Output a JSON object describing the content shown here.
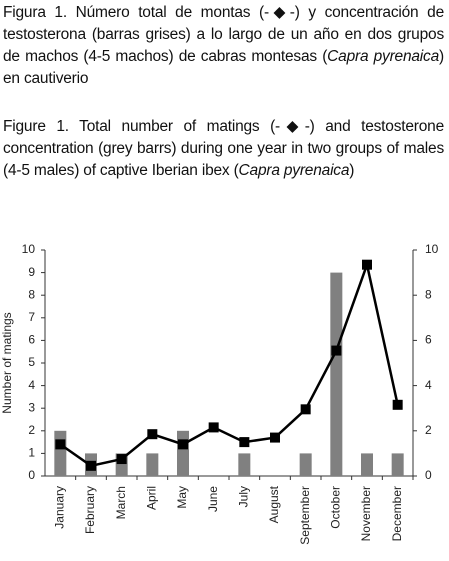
{
  "captions": {
    "spanish": [
      "Figura 1. Número total de montas (-◆-) y concentración de testosterona (barras grises) a lo largo de un año en dos grupos de machos (4-5 machos) de cabras montesas (",
      "Capra pyrenaica",
      ") en cautiverio"
    ],
    "english": [
      "Figure 1. Total number of matings (-◆-) and testosterone concentration (grey barrs) during one year in two groups of males (4-5 males) of captive Iberian ibex (",
      "Capra pyrenaica",
      ")"
    ]
  },
  "chart_data": {
    "type": "bar",
    "y_label": "Number of matings",
    "categories": [
      "January",
      "February",
      "March",
      "April",
      "May",
      "June",
      "July",
      "August",
      "September",
      "October",
      "November",
      "December"
    ],
    "series": [
      {
        "type": "bar",
        "color": "#808080",
        "values": [
          2,
          1,
          1,
          1,
          2,
          0,
          1,
          0,
          1,
          9,
          1,
          1
        ]
      },
      {
        "type": "line",
        "color": "#000000",
        "axis": "y2",
        "values": [
          1.4,
          0.45,
          0.75,
          1.85,
          1.4,
          2.15,
          1.5,
          1.7,
          2.95,
          5.55,
          9.35,
          3.15
        ]
      }
    ],
    "ylim": [
      0,
      10
    ],
    "yticks": [
      0,
      1,
      2,
      3,
      4,
      5,
      6,
      7,
      8,
      9,
      10
    ],
    "y2lim": [
      0,
      10
    ],
    "y2ticks": [
      0,
      2,
      4,
      6,
      8,
      10
    ]
  }
}
